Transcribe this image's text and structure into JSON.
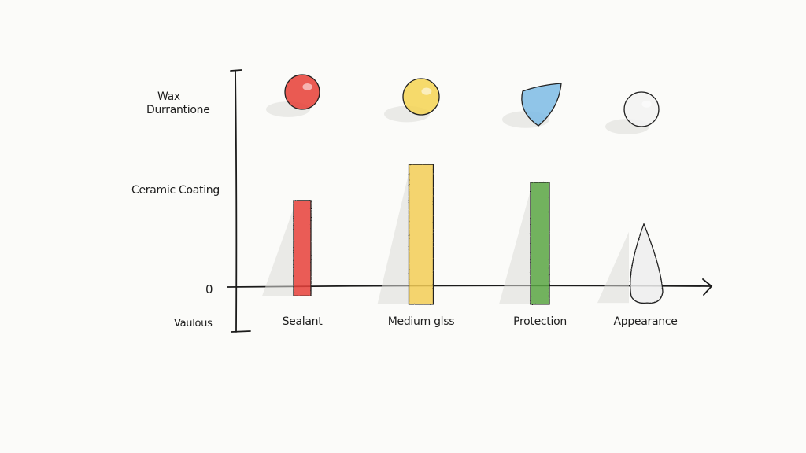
{
  "chart_data": {
    "type": "bar",
    "categories": [
      "Sealant",
      "Medium glss",
      "Protection",
      "Appearance"
    ],
    "values": [
      0.62,
      0.88,
      0.75,
      0.45
    ],
    "bar_bottoms": [
      -0.07,
      -0.13,
      -0.13,
      -0.12
    ],
    "y_tick_labels": [
      "Wax\nDurrantione",
      "Ceramic Coating",
      "0",
      "Vaulous"
    ],
    "colors": [
      "#e8403a",
      "#f3cd55",
      "#5aa642",
      "#eeeeee"
    ],
    "marker_colors": [
      "#e63d35",
      "#f5d452",
      "#7cbbe5",
      "#f2f2f2"
    ],
    "marker_shapes": [
      "circle",
      "circle",
      "shield",
      "circle"
    ],
    "bar_shapes": [
      "rect",
      "rect",
      "rect",
      "drop"
    ],
    "ylim": [
      -0.3,
      1.7
    ],
    "grid": false,
    "legend": "none",
    "title": "",
    "xlabel": "",
    "ylabel": ""
  }
}
